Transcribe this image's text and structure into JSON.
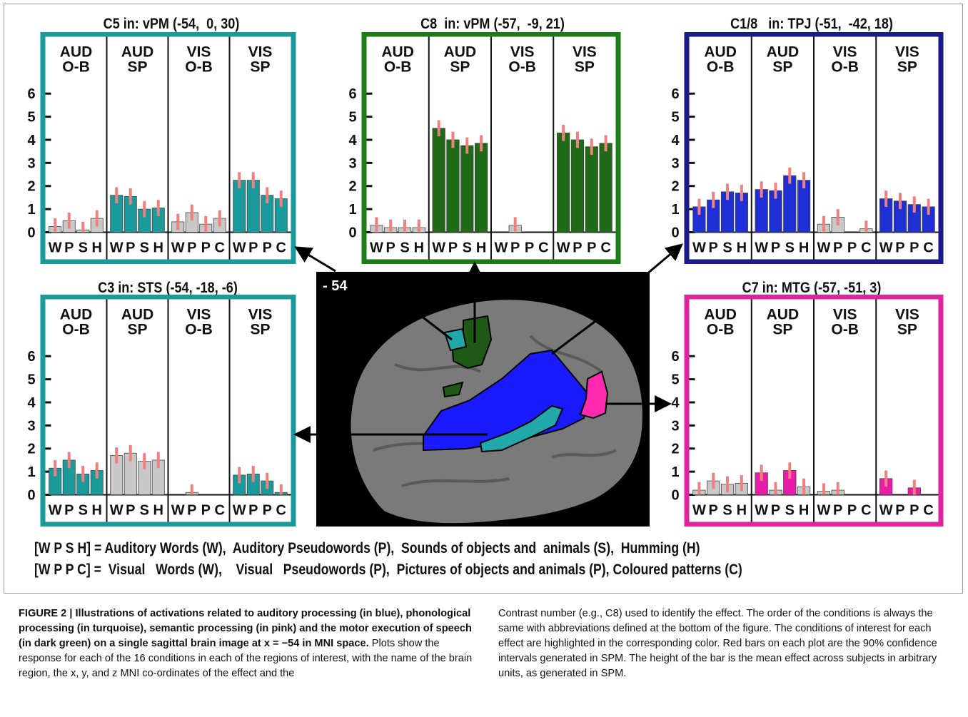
{
  "panels": [
    {
      "id": "c5",
      "title": "C5 in: vPM (-54,  0, 30)",
      "color": "#1a9a9a",
      "highlight": "#1a9a9a",
      "headers": [
        [
          "AUD",
          "O-B"
        ],
        [
          "AUD",
          "SP"
        ],
        [
          "VIS",
          "O-B"
        ],
        [
          "VIS",
          "SP"
        ]
      ],
      "letters": [
        [
          "W",
          "P",
          "S",
          "H"
        ],
        [
          "W",
          "P",
          "S",
          "H"
        ],
        [
          "W",
          "P",
          "P",
          "C"
        ],
        [
          "W",
          "P",
          "P",
          "C"
        ]
      ],
      "highlight_groups": [
        1,
        3
      ],
      "yticks": [
        "0",
        "1",
        "2",
        "3",
        "4",
        "5",
        "6"
      ],
      "values": [
        [
          0.25,
          0.5,
          0.1,
          0.6
        ],
        [
          1.6,
          1.55,
          1.0,
          1.05
        ],
        [
          0.45,
          0.85,
          0.35,
          0.6
        ],
        [
          2.25,
          2.25,
          1.6,
          1.45
        ]
      ]
    },
    {
      "id": "c8",
      "title": "C8  in: vPM (-57,  -9, 21)",
      "color": "#1e7a16",
      "highlight": "#1e6a16",
      "headers": [
        [
          "AUD",
          "O-B"
        ],
        [
          "AUD",
          "SP"
        ],
        [
          "VIS",
          "O-B"
        ],
        [
          "VIS",
          "SP"
        ]
      ],
      "letters": [
        [
          "W",
          "P",
          "S",
          "H"
        ],
        [
          "W",
          "P",
          "S",
          "H"
        ],
        [
          "W",
          "P",
          "P",
          "C"
        ],
        [
          "W",
          "P",
          "P",
          "C"
        ]
      ],
      "highlight_groups": [
        1,
        3
      ],
      "yticks": [
        "0",
        "1",
        "2",
        "3",
        "4",
        "5",
        "6"
      ],
      "values": [
        [
          0.3,
          0.2,
          0.2,
          0.2
        ],
        [
          4.5,
          4.0,
          3.75,
          3.85
        ],
        [
          0,
          0.3,
          0,
          0
        ],
        [
          4.3,
          4.0,
          3.7,
          3.85
        ]
      ]
    },
    {
      "id": "c18",
      "title": "C1/8   in: TPJ (-51,  -42, 18)",
      "color": "#1a1a8a",
      "highlight": "#1f2fd6",
      "headers": [
        [
          "AUD",
          "O-B"
        ],
        [
          "AUD",
          "SP"
        ],
        [
          "VIS",
          "O-B"
        ],
        [
          "VIS",
          "SP"
        ]
      ],
      "letters": [
        [
          "W",
          "P",
          "S",
          "H"
        ],
        [
          "W",
          "P",
          "S",
          "H"
        ],
        [
          "W",
          "P",
          "P",
          "C"
        ],
        [
          "W",
          "P",
          "P",
          "C"
        ]
      ],
      "highlight_groups": [
        0,
        1,
        3
      ],
      "yticks": [
        "0",
        "1",
        "2",
        "3",
        "4",
        "5",
        "6"
      ],
      "values": [
        [
          1.1,
          1.4,
          1.75,
          1.7
        ],
        [
          1.85,
          1.8,
          2.45,
          2.25
        ],
        [
          0.35,
          0.65,
          0,
          0.15
        ],
        [
          1.45,
          1.35,
          1.2,
          1.1
        ]
      ]
    },
    {
      "id": "c3",
      "title": "C3 in: STS (-54, -18, -6)",
      "color": "#1a9a9a",
      "highlight": "#1a9a9a",
      "headers": [
        [
          "AUD",
          "O-B"
        ],
        [
          "AUD",
          "SP"
        ],
        [
          "VIS",
          "O-B"
        ],
        [
          "VIS",
          "SP"
        ]
      ],
      "letters": [
        [
          "W",
          "P",
          "S",
          "H"
        ],
        [
          "W",
          "P",
          "S",
          "H"
        ],
        [
          "W",
          "P",
          "P",
          "C"
        ],
        [
          "W",
          "P",
          "P",
          "C"
        ]
      ],
      "highlight_groups": [
        0,
        3
      ],
      "yticks": [
        "0",
        "1",
        "2",
        "3",
        "4",
        "5",
        "6"
      ],
      "values": [
        [
          1.15,
          1.5,
          0.9,
          1.05
        ],
        [
          1.7,
          1.8,
          1.45,
          1.5
        ],
        [
          0,
          0.1,
          0,
          0
        ],
        [
          0.85,
          0.9,
          0.6,
          0.1
        ]
      ]
    },
    {
      "id": "c7",
      "title": "C7 in: MTG (-57, -51, 3)",
      "color": "#e0249e",
      "highlight": "#e81ca8",
      "headers": [
        [
          "AUD",
          "O-B"
        ],
        [
          "AUD",
          "SP"
        ],
        [
          "VIS",
          "O-B"
        ],
        [
          "VIS",
          "SP"
        ]
      ],
      "letters": [
        [
          "W",
          "P",
          "S",
          "H"
        ],
        [
          "W",
          "P",
          "S",
          "H"
        ],
        [
          "W",
          "P",
          "P",
          "C"
        ],
        [
          "W",
          "P",
          "P",
          "C"
        ]
      ],
      "highlight_groups": [
        3
      ],
      "highlight_bars": [
        [
          1,
          0
        ],
        [
          1,
          2
        ],
        [
          3,
          0
        ],
        [
          3,
          2
        ]
      ],
      "yticks": [
        "0",
        "1",
        "2",
        "3",
        "4",
        "5",
        "6"
      ],
      "values": [
        [
          0.2,
          0.6,
          0.45,
          0.5
        ],
        [
          0.95,
          0.2,
          1.05,
          0.35
        ],
        [
          0.15,
          0.2,
          0,
          0
        ],
        [
          0.7,
          0,
          0.3,
          0
        ]
      ]
    }
  ],
  "brain": {
    "slice_label": "- 54"
  },
  "legend": {
    "line1": "[W P S H] = Auditory Words (W),  Auditory Pseudowords (P),  Sounds of objects and  animals (S),  Humming (H)",
    "line2": "[W P P C] =  Visual   Words (W),    Visual   Pseudowords (P),  Pictures of objects and animals (P), Coloured patterns (C)"
  },
  "caption": {
    "bold_text": "FIGURE 2 | Illustrations of activations related to auditory processing (in blue), phonological processing (in turquoise), semantic processing (in pink) and the motor execution of speech (in dark green) on a single sagittal brain image at x = −54 in MNI space.",
    "left_text": " Plots show the response for each of the 16 conditions in each of the regions of interest, with the name of the brain region, the x, y, and z MNI co-ordinates of the effect and the",
    "right_text": "Contrast number (e.g., C8) used to identify the effect. The order of the conditions is always the same with abbreviations defined at the bottom of the figure. The conditions of interest for each effect are highlighted in the corresponding color. Red bars on each plot are the 90% confidence intervals generated in SPM. The height of the bar is the mean effect across subjects in arbitrary units, as generated in SPM."
  },
  "colors": {
    "grey_bar": "#c8c8c8",
    "error_bar": "#f08080",
    "brain_bg": "#000000"
  }
}
